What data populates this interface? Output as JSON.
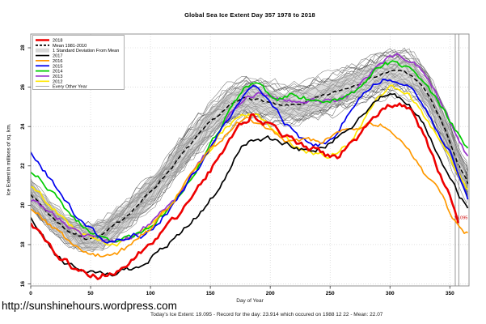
{
  "page": {
    "footer_url": "http://sunshinehours.wordpress.com",
    "footer_stats": "Today's Ice Extent: 19.095  - Record for the day: 23.914 which occured on 1988 12 22  - Mean: 22.07"
  },
  "chart_data": {
    "type": "line",
    "title": "Global Sea Ice Extent Day 357 1978 to 2018",
    "xlabel": "Day of Year",
    "ylabel": "Ice Extent in millions of sq. km.",
    "xlim": [
      0,
      366
    ],
    "ylim": [
      15.9,
      28.7
    ],
    "xticks": [
      0,
      50,
      100,
      150,
      200,
      250,
      300,
      350
    ],
    "yticks": [
      16,
      18,
      20,
      22,
      24,
      26,
      28
    ],
    "grid": true,
    "marker_days": [
      354.5,
      357.5
    ],
    "end_label": {
      "text": "19.095",
      "color": "#cc0000"
    },
    "legend_position": "top-left",
    "legend": [
      {
        "label": "2018",
        "color": "#ee0000",
        "style": "thick"
      },
      {
        "label": "Mean 1981-2010",
        "color": "#000000",
        "style": "dashed"
      },
      {
        "label": "1 Standard Deviation From Mean",
        "color": "#d8d8d8",
        "style": "band"
      },
      {
        "label": "2017",
        "color": "#000000",
        "style": "line"
      },
      {
        "label": "2016",
        "color": "#ff9900",
        "style": "line"
      },
      {
        "label": "2015",
        "color": "#0000ee",
        "style": "line"
      },
      {
        "label": "2014",
        "color": "#00cc00",
        "style": "line"
      },
      {
        "label": "2013",
        "color": "#9933cc",
        "style": "line"
      },
      {
        "label": "2012",
        "color": "#ffe800",
        "style": "line"
      },
      {
        "label": "Every Other Year",
        "color": "#888888",
        "style": "thin"
      }
    ],
    "band_halfwidth": 0.65,
    "ensemble": {
      "label": "Every Other Year",
      "count": 34,
      "spread": 1.0,
      "color": "#555555"
    },
    "mean_series": {
      "name": "Mean 1981-2010",
      "points": [
        [
          0,
          20.6
        ],
        [
          15,
          19.55
        ],
        [
          30,
          18.75
        ],
        [
          45,
          18.3
        ],
        [
          60,
          18.5
        ],
        [
          75,
          19.2
        ],
        [
          90,
          20.05
        ],
        [
          105,
          21.0
        ],
        [
          120,
          22.1
        ],
        [
          135,
          23.2
        ],
        [
          150,
          24.2
        ],
        [
          165,
          25.0
        ],
        [
          180,
          25.5
        ],
        [
          195,
          25.3
        ],
        [
          210,
          25.0
        ],
        [
          225,
          25.15
        ],
        [
          240,
          25.45
        ],
        [
          255,
          25.75
        ],
        [
          270,
          26.1
        ],
        [
          285,
          26.5
        ],
        [
          300,
          26.8
        ],
        [
          312,
          26.8
        ],
        [
          322,
          26.4
        ],
        [
          332,
          25.6
        ],
        [
          342,
          24.4
        ],
        [
          350,
          23.2
        ],
        [
          357,
          22.07
        ],
        [
          365,
          21.1
        ]
      ]
    },
    "series": [
      {
        "name": "2012",
        "color": "#ffe800",
        "width": 1.7,
        "points": [
          [
            0,
            21.0
          ],
          [
            15,
            20.1
          ],
          [
            30,
            19.15
          ],
          [
            45,
            18.45
          ],
          [
            60,
            18.05
          ],
          [
            72,
            18.05
          ],
          [
            85,
            18.35
          ],
          [
            100,
            19.0
          ],
          [
            115,
            19.85
          ],
          [
            130,
            21.1
          ],
          [
            145,
            22.45
          ],
          [
            160,
            23.7
          ],
          [
            170,
            24.3
          ],
          [
            180,
            24.6
          ],
          [
            190,
            24.5
          ],
          [
            200,
            24.0
          ],
          [
            212,
            23.4
          ],
          [
            224,
            22.9
          ],
          [
            236,
            22.65
          ],
          [
            248,
            22.55
          ],
          [
            258,
            22.7
          ],
          [
            268,
            23.3
          ],
          [
            280,
            24.5
          ],
          [
            290,
            25.4
          ],
          [
            300,
            25.95
          ],
          [
            308,
            25.95
          ],
          [
            316,
            25.55
          ],
          [
            326,
            24.8
          ],
          [
            336,
            23.85
          ],
          [
            346,
            22.8
          ],
          [
            356,
            21.6
          ],
          [
            365,
            20.85
          ]
        ]
      },
      {
        "name": "2013",
        "color": "#9933cc",
        "width": 1.7,
        "points": [
          [
            0,
            20.3
          ],
          [
            15,
            19.75
          ],
          [
            30,
            19.0
          ],
          [
            45,
            18.45
          ],
          [
            60,
            18.2
          ],
          [
            72,
            18.15
          ],
          [
            85,
            18.45
          ],
          [
            100,
            19.1
          ],
          [
            115,
            19.9
          ],
          [
            130,
            21.2
          ],
          [
            145,
            22.55
          ],
          [
            158,
            23.8
          ],
          [
            170,
            24.9
          ],
          [
            180,
            25.45
          ],
          [
            190,
            25.7
          ],
          [
            200,
            25.5
          ],
          [
            212,
            25.3
          ],
          [
            224,
            25.3
          ],
          [
            236,
            25.3
          ],
          [
            248,
            25.25
          ],
          [
            260,
            25.4
          ],
          [
            272,
            25.9
          ],
          [
            284,
            26.7
          ],
          [
            296,
            27.4
          ],
          [
            305,
            27.65
          ],
          [
            314,
            27.5
          ],
          [
            324,
            27.0
          ],
          [
            334,
            26.1
          ],
          [
            344,
            25.0
          ],
          [
            354,
            23.8
          ],
          [
            365,
            22.5
          ]
        ]
      },
      {
        "name": "2014",
        "color": "#00cc00",
        "width": 1.7,
        "points": [
          [
            0,
            21.75
          ],
          [
            15,
            20.9
          ],
          [
            30,
            19.75
          ],
          [
            45,
            18.85
          ],
          [
            60,
            18.3
          ],
          [
            72,
            18.15
          ],
          [
            85,
            18.4
          ],
          [
            100,
            18.95
          ],
          [
            115,
            19.75
          ],
          [
            130,
            21.0
          ],
          [
            145,
            22.5
          ],
          [
            158,
            23.9
          ],
          [
            170,
            25.3
          ],
          [
            180,
            26.1
          ],
          [
            188,
            26.15
          ],
          [
            196,
            25.8
          ],
          [
            206,
            25.45
          ],
          [
            216,
            25.6
          ],
          [
            226,
            25.5
          ],
          [
            236,
            25.3
          ],
          [
            246,
            25.35
          ],
          [
            256,
            25.35
          ],
          [
            266,
            25.5
          ],
          [
            276,
            26.0
          ],
          [
            286,
            26.7
          ],
          [
            296,
            27.2
          ],
          [
            304,
            27.25
          ],
          [
            312,
            27.05
          ],
          [
            322,
            26.6
          ],
          [
            332,
            25.9
          ],
          [
            342,
            25.1
          ],
          [
            352,
            24.1
          ],
          [
            358,
            23.5
          ],
          [
            365,
            22.9
          ]
        ]
      },
      {
        "name": "2015",
        "color": "#0000ee",
        "width": 1.7,
        "points": [
          [
            0,
            22.6
          ],
          [
            12,
            21.7
          ],
          [
            24,
            20.6
          ],
          [
            36,
            19.6
          ],
          [
            48,
            18.85
          ],
          [
            58,
            18.4
          ],
          [
            68,
            18.15
          ],
          [
            78,
            18.25
          ],
          [
            88,
            18.55
          ],
          [
            95,
            18.45
          ],
          [
            105,
            19.0
          ],
          [
            118,
            19.9
          ],
          [
            130,
            21.05
          ],
          [
            142,
            22.15
          ],
          [
            154,
            23.25
          ],
          [
            164,
            24.2
          ],
          [
            174,
            25.2
          ],
          [
            182,
            25.9
          ],
          [
            188,
            26.0
          ],
          [
            194,
            25.6
          ],
          [
            202,
            25.0
          ],
          [
            212,
            24.2
          ],
          [
            222,
            23.6
          ],
          [
            232,
            23.15
          ],
          [
            240,
            23.05
          ],
          [
            248,
            23.15
          ],
          [
            256,
            23.6
          ],
          [
            264,
            24.5
          ],
          [
            274,
            25.5
          ],
          [
            284,
            26.1
          ],
          [
            294,
            26.45
          ],
          [
            304,
            26.4
          ],
          [
            314,
            26.1
          ],
          [
            324,
            25.4
          ],
          [
            334,
            24.4
          ],
          [
            344,
            23.3
          ],
          [
            352,
            22.5
          ],
          [
            358,
            21.5
          ],
          [
            365,
            20.3
          ]
        ]
      },
      {
        "name": "2016",
        "color": "#ff9900",
        "width": 1.7,
        "points": [
          [
            0,
            19.9
          ],
          [
            15,
            19.0
          ],
          [
            30,
            18.25
          ],
          [
            45,
            17.75
          ],
          [
            58,
            17.45
          ],
          [
            70,
            17.5
          ],
          [
            82,
            17.9
          ],
          [
            95,
            18.55
          ],
          [
            108,
            19.4
          ],
          [
            122,
            20.5
          ],
          [
            136,
            21.7
          ],
          [
            150,
            22.8
          ],
          [
            162,
            23.5
          ],
          [
            172,
            24.1
          ],
          [
            182,
            24.35
          ],
          [
            192,
            24.1
          ],
          [
            202,
            23.65
          ],
          [
            212,
            23.35
          ],
          [
            222,
            23.25
          ],
          [
            232,
            23.3
          ],
          [
            242,
            23.25
          ],
          [
            252,
            23.5
          ],
          [
            262,
            23.75
          ],
          [
            272,
            23.95
          ],
          [
            282,
            24.1
          ],
          [
            290,
            24.15
          ],
          [
            298,
            24.0
          ],
          [
            306,
            23.6
          ],
          [
            314,
            22.95
          ],
          [
            322,
            22.2
          ],
          [
            331,
            21.4
          ],
          [
            340,
            20.85
          ],
          [
            346,
            20.2
          ],
          [
            352,
            19.4
          ],
          [
            358,
            18.8
          ],
          [
            362,
            18.55
          ],
          [
            365,
            18.6
          ]
        ]
      },
      {
        "name": "2017",
        "color": "#000000",
        "width": 1.7,
        "points": [
          [
            0,
            19.4
          ],
          [
            12,
            18.25
          ],
          [
            22,
            17.35
          ],
          [
            30,
            17.0
          ],
          [
            40,
            16.8
          ],
          [
            50,
            16.6
          ],
          [
            60,
            16.45
          ],
          [
            70,
            16.45
          ],
          [
            80,
            16.7
          ],
          [
            92,
            17.0
          ],
          [
            104,
            17.45
          ],
          [
            116,
            18.05
          ],
          [
            128,
            18.75
          ],
          [
            140,
            19.55
          ],
          [
            152,
            20.45
          ],
          [
            162,
            21.4
          ],
          [
            170,
            22.3
          ],
          [
            178,
            23.05
          ],
          [
            186,
            23.35
          ],
          [
            196,
            23.4
          ],
          [
            206,
            23.35
          ],
          [
            214,
            23.1
          ],
          [
            222,
            22.9
          ],
          [
            230,
            22.75
          ],
          [
            238,
            22.8
          ],
          [
            246,
            23.05
          ],
          [
            254,
            23.35
          ],
          [
            262,
            23.7
          ],
          [
            272,
            24.25
          ],
          [
            282,
            24.85
          ],
          [
            292,
            25.4
          ],
          [
            300,
            25.6
          ],
          [
            308,
            25.5
          ],
          [
            316,
            25.1
          ],
          [
            324,
            24.5
          ],
          [
            333,
            23.5
          ],
          [
            342,
            22.4
          ],
          [
            350,
            21.4
          ],
          [
            358,
            20.5
          ],
          [
            365,
            19.85
          ]
        ]
      },
      {
        "name": "2018",
        "color": "#ee0000",
        "width": 2.6,
        "points": [
          [
            0,
            18.95
          ],
          [
            10,
            18.3
          ],
          [
            20,
            17.6
          ],
          [
            30,
            17.05
          ],
          [
            40,
            16.65
          ],
          [
            50,
            16.45
          ],
          [
            58,
            16.4
          ],
          [
            68,
            16.6
          ],
          [
            78,
            16.95
          ],
          [
            88,
            17.35
          ],
          [
            98,
            17.9
          ],
          [
            108,
            18.5
          ],
          [
            118,
            19.2
          ],
          [
            128,
            19.9
          ],
          [
            138,
            20.75
          ],
          [
            148,
            21.6
          ],
          [
            158,
            22.5
          ],
          [
            168,
            23.4
          ],
          [
            176,
            24.1
          ],
          [
            184,
            24.6
          ],
          [
            190,
            24.45
          ],
          [
            198,
            24.1
          ],
          [
            208,
            23.65
          ],
          [
            218,
            23.25
          ],
          [
            228,
            23.0
          ],
          [
            238,
            22.8
          ],
          [
            248,
            22.55
          ],
          [
            256,
            22.45
          ],
          [
            264,
            22.85
          ],
          [
            274,
            23.5
          ],
          [
            284,
            24.25
          ],
          [
            294,
            24.85
          ],
          [
            303,
            25.2
          ],
          [
            310,
            25.15
          ],
          [
            317,
            24.75
          ],
          [
            324,
            24.05
          ],
          [
            332,
            23.05
          ],
          [
            340,
            21.9
          ],
          [
            348,
            20.7
          ],
          [
            353,
            19.9
          ],
          [
            357,
            19.095
          ]
        ]
      }
    ]
  }
}
